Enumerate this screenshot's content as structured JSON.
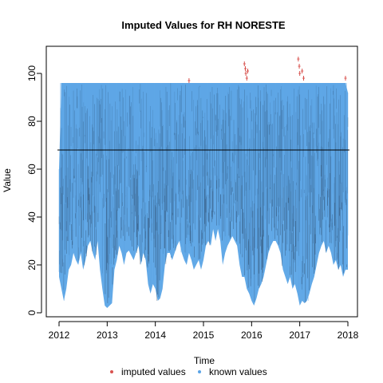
{
  "chart_data": {
    "type": "line",
    "title": "Imputed Values for  RH NORESTE",
    "xlabel": "Time",
    "ylabel": "Value",
    "xlim": [
      2012,
      2018
    ],
    "ylim": [
      0,
      100
    ],
    "x_ticks": [
      2012,
      2013,
      2014,
      2015,
      2016,
      2017,
      2018
    ],
    "y_ticks": [
      0,
      20,
      40,
      60,
      80,
      100
    ],
    "mean_line": 68,
    "legend": {
      "placement": "bottom",
      "entries": [
        {
          "label": "imputed values",
          "color": "#d9534f"
        },
        {
          "label": "known values",
          "color": "#5aa4e6"
        }
      ]
    },
    "series": [
      {
        "name": "known values",
        "color": "#5aa4e6",
        "x": [
          2012.0,
          2012.05,
          2012.1,
          2012.15,
          2012.2,
          2012.25,
          2012.3,
          2012.35,
          2012.4,
          2012.45,
          2012.5,
          2012.55,
          2012.6,
          2012.65,
          2012.7,
          2012.75,
          2012.8,
          2012.85,
          2012.9,
          2012.95,
          2013.0,
          2013.05,
          2013.1,
          2013.15,
          2013.2,
          2013.25,
          2013.3,
          2013.35,
          2013.4,
          2013.45,
          2013.5,
          2013.55,
          2013.6,
          2013.65,
          2013.7,
          2013.75,
          2013.8,
          2013.85,
          2013.9,
          2013.95,
          2014.0,
          2014.05,
          2014.1,
          2014.15,
          2014.2,
          2014.25,
          2014.3,
          2014.35,
          2014.4,
          2014.45,
          2014.5,
          2014.55,
          2014.6,
          2014.65,
          2014.7,
          2014.75,
          2014.8,
          2014.85,
          2014.9,
          2014.95,
          2015.0,
          2015.05,
          2015.1,
          2015.15,
          2015.2,
          2015.25,
          2015.3,
          2015.35,
          2015.4,
          2015.45,
          2015.5,
          2015.55,
          2015.6,
          2015.65,
          2015.7,
          2015.75,
          2015.8,
          2015.85,
          2015.9,
          2015.95,
          2016.0,
          2016.05,
          2016.1,
          2016.15,
          2016.2,
          2016.25,
          2016.3,
          2016.35,
          2016.4,
          2016.45,
          2016.5,
          2016.55,
          2016.6,
          2016.65,
          2016.7,
          2016.75,
          2016.8,
          2016.85,
          2016.9,
          2016.95,
          2017.0,
          2017.05,
          2017.1,
          2017.15,
          2017.2,
          2017.25,
          2017.3,
          2017.35,
          2017.4,
          2017.45,
          2017.5,
          2017.55,
          2017.6,
          2017.65,
          2017.7,
          2017.75,
          2017.8,
          2017.85,
          2017.9,
          2017.95,
          2018.0
        ],
        "y_max": [
          60,
          96,
          96,
          96,
          96,
          96,
          96,
          96,
          96,
          96,
          96,
          96,
          96,
          96,
          96,
          96,
          96,
          96,
          96,
          96,
          96,
          96,
          96,
          96,
          96,
          96,
          96,
          96,
          96,
          96,
          96,
          96,
          96,
          96,
          96,
          96,
          96,
          96,
          96,
          96,
          96,
          96,
          96,
          96,
          96,
          96,
          96,
          96,
          96,
          96,
          96,
          96,
          96,
          96,
          96,
          96,
          96,
          96,
          96,
          96,
          96,
          96,
          96,
          96,
          96,
          96,
          96,
          96,
          96,
          96,
          96,
          96,
          96,
          96,
          96,
          96,
          96,
          96,
          96,
          96,
          96,
          96,
          96,
          96,
          96,
          96,
          96,
          96,
          96,
          96,
          96,
          96,
          96,
          96,
          96,
          96,
          96,
          96,
          96,
          96,
          96,
          96,
          96,
          96,
          96,
          96,
          96,
          96,
          96,
          96,
          96,
          96,
          96,
          96,
          96,
          96,
          96,
          96,
          96,
          96,
          92
        ],
        "y_min": [
          15,
          10,
          5,
          10,
          18,
          20,
          25,
          22,
          20,
          25,
          18,
          22,
          28,
          30,
          25,
          22,
          30,
          18,
          10,
          3,
          2,
          3,
          4,
          18,
          22,
          28,
          25,
          20,
          25,
          26,
          24,
          22,
          25,
          28,
          20,
          25,
          22,
          12,
          8,
          12,
          10,
          5,
          6,
          10,
          20,
          25,
          25,
          22,
          25,
          28,
          30,
          25,
          22,
          20,
          25,
          22,
          18,
          20,
          22,
          18,
          22,
          28,
          30,
          28,
          35,
          30,
          35,
          30,
          20,
          25,
          28,
          30,
          32,
          30,
          28,
          20,
          15,
          15,
          10,
          8,
          5,
          3,
          6,
          10,
          12,
          15,
          20,
          25,
          28,
          30,
          30,
          28,
          25,
          18,
          15,
          12,
          15,
          10,
          12,
          8,
          3,
          5,
          4,
          5,
          8,
          12,
          15,
          20,
          25,
          28,
          30,
          25,
          28,
          25,
          20,
          22,
          18,
          20,
          15,
          18,
          18
        ]
      },
      {
        "name": "imputed values",
        "color": "#d9534f",
        "points": [
          [
            2014.7,
            97
          ],
          [
            2015.85,
            104
          ],
          [
            2015.87,
            102
          ],
          [
            2015.88,
            100
          ],
          [
            2015.9,
            98
          ],
          [
            2015.92,
            101
          ],
          [
            2016.97,
            106
          ],
          [
            2016.99,
            103
          ],
          [
            2017.0,
            100
          ],
          [
            2017.05,
            101
          ],
          [
            2017.08,
            98
          ],
          [
            2017.95,
            98
          ]
        ]
      }
    ]
  }
}
